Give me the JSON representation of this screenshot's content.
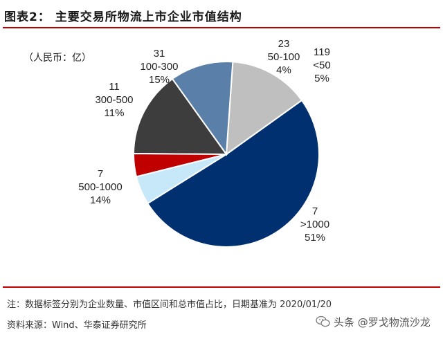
{
  "header": {
    "title": "图表2：   主要交易所物流上市企业市值结构"
  },
  "unit_label": "（人民币：亿）",
  "chart_data": {
    "type": "pie",
    "title": "主要交易所物流上市企业市值结构",
    "unit": "（人民币：亿）",
    "slices": [
      {
        "category": ">1000",
        "count": "7",
        "percent_label": "51%",
        "value": 51,
        "color": "#003070"
      },
      {
        "category": "500-1000",
        "count": "7",
        "percent_label": "14%",
        "value": 14,
        "color": "#bfbfbf"
      },
      {
        "category": "300-500",
        "count": "11",
        "percent_label": "11%",
        "value": 11,
        "color": "#5a7fa8"
      },
      {
        "category": "100-300",
        "count": "31",
        "percent_label": "15%",
        "value": 15,
        "color": "#3d3d3d"
      },
      {
        "category": "50-100",
        "count": "23",
        "percent_label": "4%",
        "value": 4,
        "color": "#c00000"
      },
      {
        "category": "<50",
        "count": "119",
        "percent_label": "5%",
        "value": 5,
        "color": "#c6e8f8"
      }
    ]
  },
  "footer": {
    "note": "注：数据标签分别为企业数量、市值区间和总市值占比，日期基准为 2020/01/20",
    "source": "资料来源：Wind、华泰证券研究所"
  },
  "watermark": {
    "text": "头条 @罗戈物流沙龙",
    "icon": "wechat-icon"
  }
}
